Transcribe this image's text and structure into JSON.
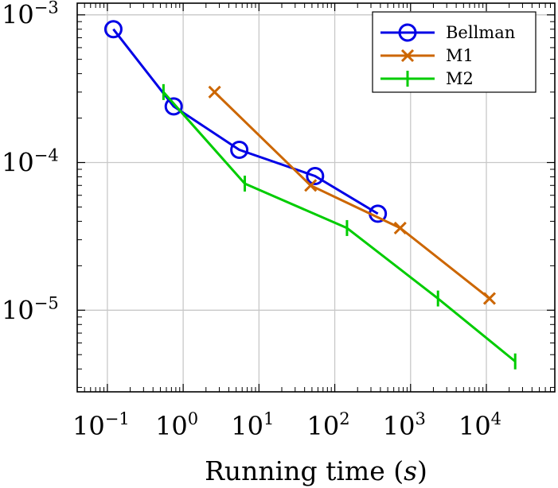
{
  "chart_data": {
    "type": "line",
    "title": "",
    "xlabel": "Running time (s)",
    "ylabel": "",
    "xscale": "log",
    "yscale": "log",
    "xlim": [
      0.04,
      80000
    ],
    "ylim": [
      2.8e-06,
      0.0012
    ],
    "grid": true,
    "legend_position": "top-right",
    "x_ticks": [
      {
        "value": 0.1,
        "base": "10",
        "exp": "−1"
      },
      {
        "value": 1,
        "base": "10",
        "exp": "0"
      },
      {
        "value": 10,
        "base": "10",
        "exp": "1"
      },
      {
        "value": 100,
        "base": "10",
        "exp": "2"
      },
      {
        "value": 1000,
        "base": "10",
        "exp": "3"
      },
      {
        "value": 10000,
        "base": "10",
        "exp": "4"
      }
    ],
    "y_ticks": [
      {
        "value": 1e-05,
        "base": "10",
        "exp": "−5"
      },
      {
        "value": 0.0001,
        "base": "10",
        "exp": "−4"
      },
      {
        "value": 0.001,
        "base": "10",
        "exp": "−3"
      }
    ],
    "series": [
      {
        "name": "Bellman",
        "color": "#0000e6",
        "marker": "circle",
        "points": [
          [
            0.12,
            0.0008
          ],
          [
            0.75,
            0.00024
          ],
          [
            5.5,
            0.000122
          ],
          [
            55,
            8.1e-05
          ],
          [
            370,
            4.5e-05
          ]
        ]
      },
      {
        "name": "M1",
        "color": "#cc6600",
        "marker": "x",
        "points": [
          [
            2.6,
            0.0003
          ],
          [
            48,
            7e-05
          ],
          [
            730,
            3.6e-05
          ],
          [
            11000,
            1.2e-05
          ]
        ]
      },
      {
        "name": "M2",
        "color": "#00cc00",
        "marker": "vbar",
        "points": [
          [
            0.55,
            0.0003
          ],
          [
            6.5,
            7.2e-05
          ],
          [
            145,
            3.6e-05
          ],
          [
            2300,
            1.2e-05
          ],
          [
            24000,
            4.5e-06
          ]
        ]
      }
    ]
  }
}
